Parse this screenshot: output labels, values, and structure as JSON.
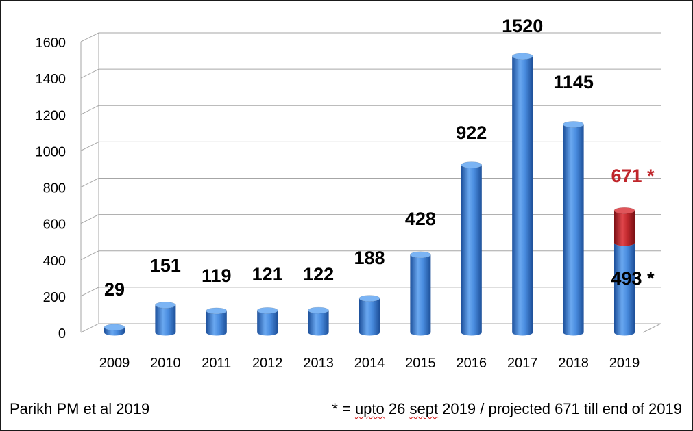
{
  "chart_data": {
    "type": "bar",
    "title": "",
    "xlabel": "",
    "ylabel": "",
    "ylim": [
      0,
      1600
    ],
    "yticks": [
      0,
      200,
      400,
      600,
      800,
      1000,
      1200,
      1400,
      1600
    ],
    "grid": true,
    "legend": "none",
    "categories": [
      "2009",
      "2010",
      "2011",
      "2012",
      "2013",
      "2014",
      "2015",
      "2016",
      "2017",
      "2018",
      "2019"
    ],
    "series": [
      {
        "values": [
          29,
          151,
          119,
          121,
          122,
          188,
          428,
          922,
          1520,
          1145,
          493
        ],
        "labels": [
          "29",
          "151",
          "119",
          "121",
          "122",
          "188",
          "428",
          "922",
          "1520",
          "1145",
          "493 *"
        ],
        "color": "#3a7fd9"
      },
      {
        "values": [
          null,
          null,
          null,
          null,
          null,
          null,
          null,
          null,
          null,
          null,
          178
        ],
        "labels": [
          "",
          "",
          "",
          "",
          "",
          "",
          "",
          "",
          "",
          "",
          "671 *"
        ],
        "color": "#c0262b"
      }
    ]
  },
  "source_note": "Parikh PM et al 2019",
  "footnote": {
    "prefix": "* = ",
    "squiggle_1": "upto",
    "middle": " 26 ",
    "squiggle_2": "sept",
    "suffix": " 2019 / projected 671 till end of 2019"
  },
  "colors": {
    "bar": "#3a7fd9",
    "projected": "#c0262b",
    "projected_label": "#c0262b",
    "grid": "#a6a6a6"
  }
}
